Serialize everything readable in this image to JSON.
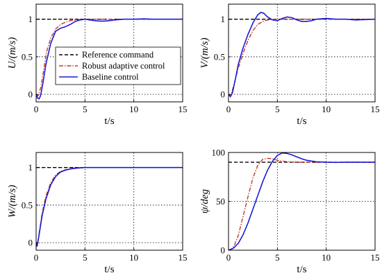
{
  "colors": {
    "reference": "#000000",
    "robust": "#c0392b",
    "baseline": "#1a1ad6",
    "grid": "#000000"
  },
  "legend": [
    {
      "key": "reference",
      "label": "Reference command"
    },
    {
      "key": "robust",
      "label": "Robust adaptive control"
    },
    {
      "key": "baseline",
      "label": "Baseline control"
    }
  ],
  "chart_data": [
    {
      "type": "line",
      "ylabel": "U/(m/s)",
      "xlabel": "t/s",
      "xlim": [
        0,
        15
      ],
      "ylim": [
        -0.1,
        1.2
      ],
      "xticks": [
        0,
        5,
        10,
        15
      ],
      "yticks": [
        0,
        0.5,
        1
      ],
      "ytick_labels": [
        "0",
        "0.5",
        "1"
      ],
      "grid": true,
      "legend_position": "center",
      "series": [
        {
          "key": "reference",
          "style": "dashed",
          "x": [
            0,
            15
          ],
          "y": [
            1,
            1
          ]
        },
        {
          "key": "robust",
          "style": "dashdot",
          "x": [
            0,
            0.2,
            0.5,
            0.8,
            1.1,
            1.5,
            2,
            2.5,
            3,
            3.5,
            4,
            5,
            6,
            8,
            10,
            12,
            15
          ],
          "y": [
            0,
            -0.02,
            0.1,
            0.35,
            0.58,
            0.75,
            0.87,
            0.93,
            0.96,
            0.98,
            0.99,
            1,
            1,
            1,
            1,
            1,
            1
          ]
        },
        {
          "key": "baseline",
          "style": "solid",
          "x": [
            0,
            0.15,
            0.3,
            0.45,
            0.7,
            1,
            1.5,
            2,
            2.5,
            3,
            3.5,
            4,
            4.5,
            5,
            5.5,
            6,
            6.5,
            7,
            7.5,
            8,
            9,
            10,
            11,
            12,
            13,
            15
          ],
          "y": [
            0,
            -0.05,
            -0.06,
            -0.02,
            0.15,
            0.4,
            0.68,
            0.84,
            0.88,
            0.9,
            0.93,
            0.97,
            0.99,
            1.0,
            0.99,
            0.98,
            0.975,
            0.975,
            0.98,
            0.99,
            1.0,
            1.0,
            1.005,
            1.0,
            1.0,
            1.0
          ]
        }
      ]
    },
    {
      "type": "line",
      "ylabel": "V/(m/s)",
      "xlabel": "t/s",
      "xlim": [
        0,
        15
      ],
      "ylim": [
        -0.1,
        1.2
      ],
      "xticks": [
        0,
        5,
        10,
        15
      ],
      "yticks": [
        0,
        0.5,
        1
      ],
      "ytick_labels": [
        "0",
        "0.5",
        "1"
      ],
      "grid": true,
      "series": [
        {
          "key": "reference",
          "style": "dashed",
          "x": [
            0,
            15
          ],
          "y": [
            1,
            1
          ]
        },
        {
          "key": "robust",
          "style": "dashdot",
          "x": [
            0,
            0.2,
            0.5,
            1,
            1.5,
            2,
            2.5,
            3,
            3.5,
            4,
            4.5,
            5,
            6,
            8,
            10,
            15
          ],
          "y": [
            0,
            -0.02,
            0.1,
            0.35,
            0.55,
            0.72,
            0.85,
            0.93,
            0.97,
            0.99,
            1.0,
            1.0,
            1.0,
            1.0,
            1.0,
            1.0
          ]
        },
        {
          "key": "baseline",
          "style": "solid",
          "x": [
            0,
            0.2,
            0.4,
            0.7,
            1,
            1.5,
            2,
            2.5,
            3,
            3.3,
            3.6,
            4,
            4.5,
            5,
            5.5,
            6,
            6.5,
            7,
            7.5,
            8,
            8.5,
            9,
            10,
            11,
            12,
            13,
            15
          ],
          "y": [
            0,
            -0.03,
            0.02,
            0.2,
            0.4,
            0.62,
            0.8,
            0.95,
            1.06,
            1.09,
            1.08,
            1.03,
            0.99,
            0.98,
            1.01,
            1.03,
            1.02,
            0.99,
            0.97,
            0.97,
            0.98,
            1.0,
            1.01,
            1.0,
            1.0,
            0.99,
            1.0
          ]
        }
      ]
    },
    {
      "type": "line",
      "ylabel": "W/(m/s)",
      "xlabel": "t/s",
      "xlim": [
        0,
        15
      ],
      "ylim": [
        -0.1,
        1.2
      ],
      "xticks": [
        0,
        5,
        10,
        15
      ],
      "yticks": [
        0,
        0.5,
        1
      ],
      "ytick_labels": [
        "0",
        "0.5",
        "1"
      ],
      "grid": true,
      "series": [
        {
          "key": "reference",
          "style": "dashed",
          "x": [
            0,
            15
          ],
          "y": [
            1,
            1
          ]
        },
        {
          "key": "robust",
          "style": "dashdot",
          "x": [
            0,
            0.1,
            0.3,
            0.6,
            1,
            1.5,
            2,
            2.5,
            3,
            3.5,
            4,
            5,
            6,
            8,
            15
          ],
          "y": [
            0,
            -0.05,
            0.12,
            0.38,
            0.62,
            0.8,
            0.9,
            0.95,
            0.97,
            0.985,
            0.995,
            1.0,
            1.0,
            1.0,
            1.0
          ]
        },
        {
          "key": "baseline",
          "style": "solid",
          "x": [
            0,
            0.1,
            0.3,
            0.6,
            1,
            1.5,
            2,
            2.5,
            3,
            3.5,
            4,
            5,
            6,
            8,
            15
          ],
          "y": [
            0,
            -0.05,
            0.1,
            0.35,
            0.58,
            0.77,
            0.88,
            0.94,
            0.965,
            0.98,
            0.99,
            1.0,
            1.0,
            1.0,
            1.0
          ]
        }
      ]
    },
    {
      "type": "line",
      "ylabel": "ψ/deg",
      "xlabel": "t/s",
      "xlim": [
        0,
        15
      ],
      "ylim": [
        0,
        100
      ],
      "xticks": [
        0,
        5,
        10,
        15
      ],
      "yticks": [
        0,
        50,
        100
      ],
      "ytick_labels": [
        "0",
        "50",
        "100"
      ],
      "grid": true,
      "series": [
        {
          "key": "reference",
          "style": "dashed",
          "x": [
            0,
            15
          ],
          "y": [
            90,
            90
          ]
        },
        {
          "key": "robust",
          "style": "dashdot",
          "x": [
            0,
            0.3,
            0.6,
            1,
            1.5,
            2,
            2.5,
            3,
            3.5,
            4,
            4.5,
            5,
            6,
            7,
            8,
            10,
            12,
            15
          ],
          "y": [
            0,
            1,
            5,
            15,
            35,
            55,
            74,
            87,
            93,
            94,
            93.5,
            92,
            90.5,
            90,
            90,
            90,
            90,
            90
          ]
        },
        {
          "key": "baseline",
          "style": "solid",
          "x": [
            0,
            0.5,
            1,
            1.5,
            2,
            2.5,
            3,
            3.5,
            4,
            4.5,
            5,
            5.5,
            6,
            6.5,
            7,
            7.5,
            8,
            9,
            10,
            11,
            12,
            13,
            15
          ],
          "y": [
            0,
            2,
            7,
            16,
            28,
            42,
            56,
            70,
            82,
            91,
            97,
            99.5,
            99,
            97.5,
            95.5,
            93.5,
            92,
            90.5,
            90,
            89.8,
            90,
            90,
            90
          ]
        }
      ]
    }
  ]
}
